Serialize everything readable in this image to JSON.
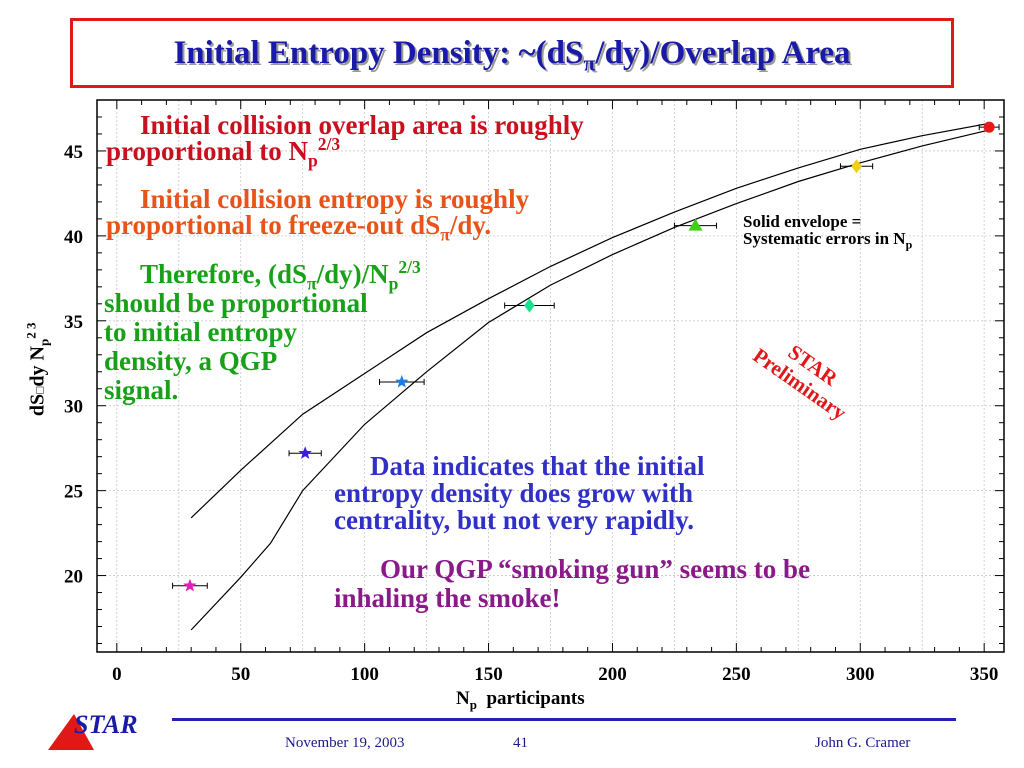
{
  "title": {
    "prefix": "Initial Entropy Density:  ~(dS",
    "sub": "π",
    "suffix": "/dy)/Overlap Area"
  },
  "notes": {
    "n1_line1": "Initial collision overlap area is roughly",
    "n1_line2": "proportional to N",
    "n1_sub": "p",
    "n1_sup": "2/3",
    "n2_line1": "Initial collision entropy is roughly",
    "n2_line2a": "proportional to freeze-out dS",
    "n2_sub": "π",
    "n2_line2b": "/dy.",
    "n3_line1a": "Therefore, (dS",
    "n3_sub1": "π",
    "n3_line1b": "/dy)/N",
    "n3_sub2": "p",
    "n3_sup": "2/3",
    "n3_line2": "should be proportional",
    "n3_line3": "to initial entropy",
    "n3_line4": "density, a QGP",
    "n3_line5": "signal.",
    "n4_line1": "Data indicates that the initial",
    "n4_line2": "entropy density does grow with",
    "n4_line3": "centrality, but not very rapidly.",
    "n5_line1": "Our QGP “smoking gun” seems to be",
    "n5_line2": "inhaling the smoke!"
  },
  "envelope_note": {
    "line1": "Solid envelope =",
    "line2": "Systematic errors in N",
    "sub": "p"
  },
  "preliminary": {
    "line1": "STAR",
    "line2": "Preliminary"
  },
  "footer": {
    "date": "November 19, 2003",
    "page": "41",
    "author": "John G. Cramer",
    "logo_text": "STAR"
  },
  "chart_data": {
    "type": "scatter",
    "xlabel": "N",
    "xlabel_sub": "p",
    "xlabel_suffix": "participants",
    "ylabel_main": "dS",
    "ylabel_box": "□",
    "ylabel_mid": "dy  N",
    "ylabel_sub": "p",
    "ylabel_sup": "2 3",
    "xlim": [
      -8,
      358
    ],
    "ylim": [
      15.5,
      48
    ],
    "x_ticks": [
      0,
      50,
      100,
      150,
      200,
      250,
      300,
      350
    ],
    "y_ticks": [
      20,
      25,
      30,
      35,
      40,
      45
    ],
    "points": [
      {
        "x": 29.5,
        "y": 19.4,
        "xerr": 7,
        "marker": "star",
        "color": "#e81cb8"
      },
      {
        "x": 76,
        "y": 27.2,
        "xerr": 6.5,
        "marker": "star",
        "color": "#3c1ce0"
      },
      {
        "x": 115,
        "y": 31.4,
        "xerr": 9,
        "marker": "star",
        "color": "#1c7ce8"
      },
      {
        "x": 166.5,
        "y": 35.9,
        "xerr": 10,
        "marker": "diamond",
        "color": "#18e08c"
      },
      {
        "x": 233.5,
        "y": 40.6,
        "xerr": 8.5,
        "marker": "triangle",
        "color": "#40d018"
      },
      {
        "x": 298.5,
        "y": 44.1,
        "xerr": 6.5,
        "marker": "diamond",
        "color": "#f0d010"
      },
      {
        "x": 352,
        "y": 46.4,
        "xerr": 4,
        "marker": "circle",
        "color": "#e81818"
      }
    ],
    "envelope_upper": {
      "x": [
        30,
        50,
        75,
        100,
        125,
        150,
        175,
        200,
        225,
        250,
        275,
        300,
        325,
        351
      ],
      "y": [
        23.4,
        26.2,
        29.5,
        31.9,
        34.3,
        36.3,
        38.2,
        39.9,
        41.4,
        42.8,
        44.0,
        45.1,
        45.9,
        46.6
      ]
    },
    "envelope_lower": {
      "x": [
        30,
        50,
        62,
        75,
        100,
        125,
        150,
        175,
        200,
        225,
        250,
        275,
        300,
        325,
        351
      ],
      "y": [
        16.8,
        19.9,
        21.9,
        25.0,
        28.9,
        32.0,
        34.9,
        37.1,
        38.9,
        40.5,
        41.9,
        43.2,
        44.3,
        45.3,
        46.2
      ]
    },
    "grid": true
  }
}
